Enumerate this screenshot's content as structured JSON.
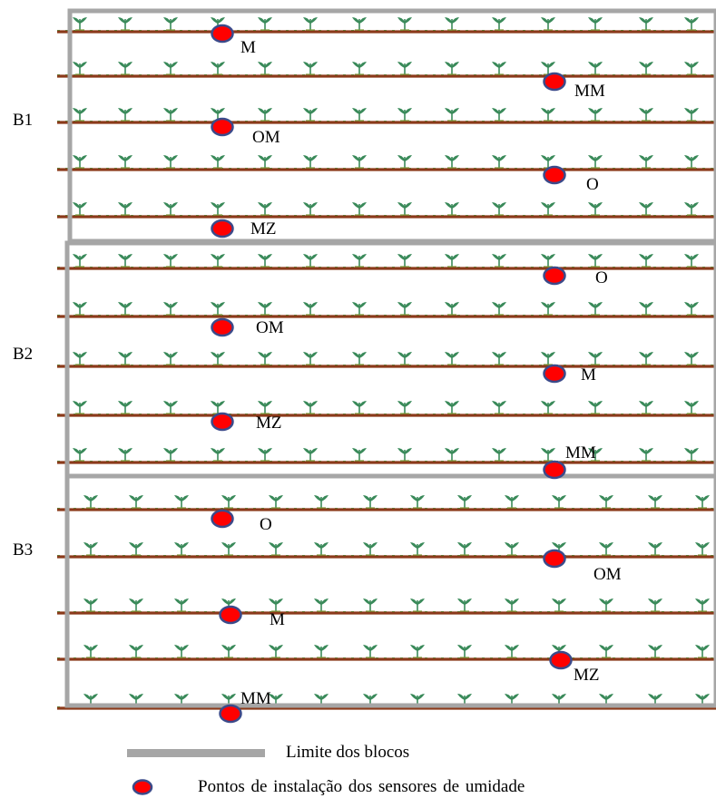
{
  "blocks": [
    {
      "label": "B1",
      "sensors": [
        {
          "label": "M",
          "column": "left",
          "row": 0
        },
        {
          "label": "MM",
          "column": "right",
          "row": 1
        },
        {
          "label": "OM",
          "column": "left",
          "row": 2
        },
        {
          "label": "O",
          "column": "right",
          "row": 3
        },
        {
          "label": "MZ",
          "column": "left",
          "row": 4
        }
      ]
    },
    {
      "label": "B2",
      "sensors": [
        {
          "label": "O",
          "column": "right",
          "row": 0
        },
        {
          "label": "OM",
          "column": "left",
          "row": 1
        },
        {
          "label": "M",
          "column": "right",
          "row": 2
        },
        {
          "label": "MZ",
          "column": "left",
          "row": 3
        },
        {
          "label": "MM",
          "column": "right",
          "row": 4
        }
      ]
    },
    {
      "label": "B3",
      "sensors": [
        {
          "label": "O",
          "column": "left",
          "row": 0
        },
        {
          "label": "OM",
          "column": "right",
          "row": 1
        },
        {
          "label": "M",
          "column": "left",
          "row": 2
        },
        {
          "label": "MZ",
          "column": "right",
          "row": 3
        },
        {
          "label": "MM",
          "column": "left",
          "row": 4
        }
      ]
    }
  ],
  "legend": {
    "block_boundary": "Limite dos blocos",
    "sensor_points": "Pontos de instalação dos sensores de umidade"
  },
  "colors": {
    "block_boundary": "#a6a6a6",
    "soil_row": "#8b3a1a",
    "plant": "#3a8a5a",
    "sensor_fill": "#ff0000",
    "sensor_stroke": "#3b4a8a"
  }
}
